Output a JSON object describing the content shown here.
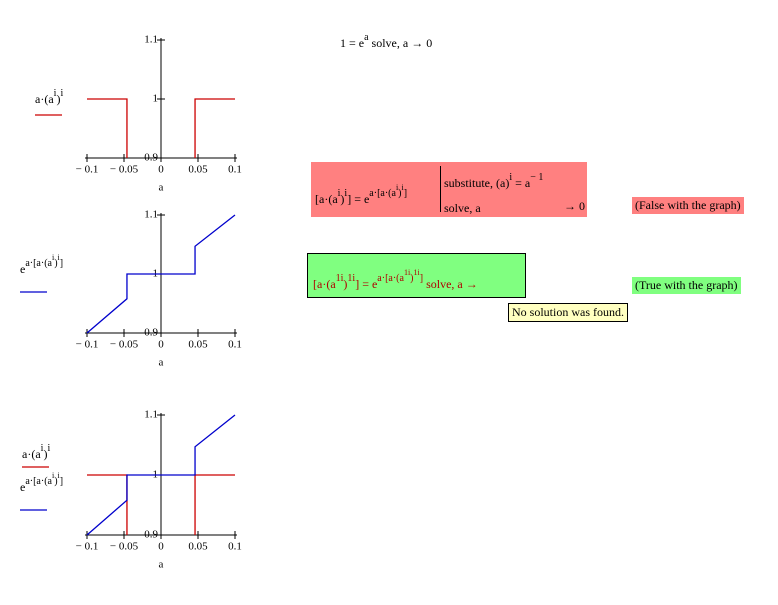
{
  "chart_data": [
    {
      "type": "line",
      "x_label": "a",
      "xlim": [
        -0.1,
        0.1
      ],
      "ylim": [
        0.9,
        1.1
      ],
      "xticks": [
        {
          "value": -0.1,
          "label": "− 0.1"
        },
        {
          "value": -0.05,
          "label": "− 0.05"
        },
        0,
        0.05,
        0.1
      ],
      "yticks": [
        0.9,
        1,
        1.1
      ],
      "series": [
        {
          "name": [
            {
              "text": "a·(a",
              "level": 0
            },
            {
              "text": "i",
              "level": 1
            },
            {
              "text": ")",
              "level": 0
            },
            {
              "text": "i",
              "level": 1
            }
          ],
          "color": "#cc0000",
          "x": [
            -0.1,
            -0.046,
            -0.046,
            0,
            0.046,
            0.046,
            0.1
          ],
          "values": [
            1,
            1,
            0.9,
            null,
            0.9,
            1,
            1
          ]
        }
      ]
    },
    {
      "type": "line",
      "x_label": "a",
      "xlim": [
        -0.1,
        0.1
      ],
      "ylim": [
        0.9,
        1.1
      ],
      "xticks": [
        {
          "value": -0.1,
          "label": "− 0.1"
        },
        {
          "value": -0.05,
          "label": "− 0.05"
        },
        0,
        0.05,
        0.1
      ],
      "yticks": [
        0.9,
        1,
        1.1
      ],
      "series": [
        {
          "name": [
            {
              "text": "e",
              "level": 0
            },
            {
              "text": "a·[a·(a",
              "level": 1
            },
            {
              "text": "i",
              "level": 2
            },
            {
              "text": ")",
              "level": 1
            },
            {
              "text": "i",
              "level": 2
            },
            {
              "text": "]",
              "level": 1
            }
          ],
          "color": "#0000cc",
          "x": [
            -0.1,
            -0.046,
            -0.046,
            0.046,
            0.046,
            0.1
          ],
          "values": [
            0.9,
            0.958,
            1,
            1,
            1.047,
            1.1
          ]
        }
      ]
    },
    {
      "type": "line",
      "x_label": "a",
      "xlim": [
        -0.1,
        0.1
      ],
      "ylim": [
        0.9,
        1.1
      ],
      "xticks": [
        {
          "value": -0.1,
          "label": "− 0.1"
        },
        {
          "value": -0.05,
          "label": "− 0.05"
        },
        0,
        0.05,
        0.1
      ],
      "yticks": [
        0.9,
        1,
        1.1
      ],
      "series": [
        {
          "name": [
            {
              "text": "a·(a",
              "level": 0
            },
            {
              "text": "i",
              "level": 1
            },
            {
              "text": ")",
              "level": 0
            },
            {
              "text": "i",
              "level": 1
            }
          ],
          "color": "#cc0000",
          "x": [
            -0.1,
            -0.046,
            -0.046,
            0,
            0.046,
            0.046,
            0.1
          ],
          "values": [
            1,
            1,
            0.9,
            null,
            0.9,
            1,
            1
          ]
        },
        {
          "name": [
            {
              "text": "e",
              "level": 0
            },
            {
              "text": "a·[a·(a",
              "level": 1
            },
            {
              "text": "i",
              "level": 2
            },
            {
              "text": ")",
              "level": 1
            },
            {
              "text": "i",
              "level": 2
            },
            {
              "text": "]",
              "level": 1
            }
          ],
          "color": "#0000cc",
          "x": [
            -0.1,
            -0.046,
            -0.046,
            0.046,
            0.046,
            0.1
          ],
          "values": [
            0.9,
            0.958,
            1,
            1,
            1.047,
            1.1
          ]
        }
      ]
    }
  ],
  "worksheet": {
    "top_equation": [
      {
        "text": "1 = e",
        "level": 0
      },
      {
        "text": "a",
        "level": 1
      },
      {
        "text": " solve, a  → 0",
        "level": 0
      }
    ],
    "false_block": {
      "lhs": [
        {
          "text": "[a·(a",
          "level": 0
        },
        {
          "text": "i",
          "level": 1
        },
        {
          "text": ")",
          "level": 0
        },
        {
          "text": "i",
          "level": 1
        },
        {
          "text": "] = e",
          "level": 0
        },
        {
          "text": "a·[a·(a",
          "level": 1
        },
        {
          "text": "i",
          "level": 2
        },
        {
          "text": ")",
          "level": 1
        },
        {
          "text": "i",
          "level": 2
        },
        {
          "text": "]",
          "level": 1
        }
      ],
      "substitute": [
        {
          "text": "substitute, (a)",
          "level": 0
        },
        {
          "text": "i",
          "level": 1
        },
        {
          "text": " = a",
          "level": 0
        },
        {
          "text": "− 1",
          "level": 1
        }
      ],
      "solve": "solve, a",
      "result": "→ 0"
    },
    "false_label": "(False with the graph)",
    "true_block": {
      "expression": [
        {
          "text": "[a·(a",
          "level": 0
        },
        {
          "text": "1i",
          "level": 1
        },
        {
          "text": ")",
          "level": 0
        },
        {
          "text": "1i",
          "level": 1
        },
        {
          "text": "] = e",
          "level": 0
        },
        {
          "text": "a·[a·(a",
          "level": 1
        },
        {
          "text": "1i",
          "level": 2
        },
        {
          "text": ")",
          "level": 1
        },
        {
          "text": "1i",
          "level": 2
        },
        {
          "text": "]",
          "level": 1
        },
        {
          "text": " solve, a →",
          "level": 0
        }
      ]
    },
    "tooltip": "No solution was found.",
    "true_label": "(True with the graph)"
  }
}
